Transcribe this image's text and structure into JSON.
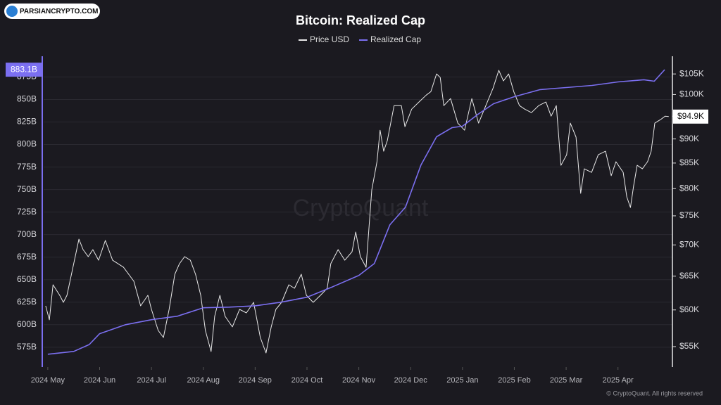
{
  "chart_data": {
    "type": "line",
    "title": "Bitcoin: Realized Cap",
    "brand": "PARSIANCRYPTO.COM",
    "watermark": "CryptoQuant",
    "footer": "© CryptoQuant. All rights reserved",
    "xlim": [
      -0.08,
      12.05
    ],
    "xticks": [
      {
        "value": 0,
        "label": "2024 May"
      },
      {
        "value": 1,
        "label": "2024 Jun"
      },
      {
        "value": 2,
        "label": "2024 Jul"
      },
      {
        "value": 3,
        "label": "2024 Aug"
      },
      {
        "value": 4,
        "label": "2024 Sep"
      },
      {
        "value": 5,
        "label": "2024 Oct"
      },
      {
        "value": 6,
        "label": "2024 Nov"
      },
      {
        "value": 7,
        "label": "2024 Dec"
      },
      {
        "value": 8,
        "label": "2025 Jan"
      },
      {
        "value": 9,
        "label": "2025 Feb"
      },
      {
        "value": 10,
        "label": "2025 Mar"
      },
      {
        "value": 11,
        "label": "2025 Apr"
      }
    ],
    "ylim": [
      553,
      898
    ],
    "yticks": [
      {
        "value": 575,
        "label": "575B"
      },
      {
        "value": 600,
        "label": "600B"
      },
      {
        "value": 625,
        "label": "625B"
      },
      {
        "value": 650,
        "label": "650B"
      },
      {
        "value": 675,
        "label": "675B"
      },
      {
        "value": 700,
        "label": "700B"
      },
      {
        "value": 725,
        "label": "725B"
      },
      {
        "value": 750,
        "label": "750B"
      },
      {
        "value": 775,
        "label": "775B"
      },
      {
        "value": 800,
        "label": "800B"
      },
      {
        "value": 825,
        "label": "825B"
      },
      {
        "value": 850,
        "label": "850B"
      },
      {
        "value": 875,
        "label": "875B"
      }
    ],
    "y2lim": [
      52400,
      109500
    ],
    "y2scale": "log",
    "y2ticks": [
      {
        "value": 55000,
        "label": "$55K"
      },
      {
        "value": 60000,
        "label": "$60K"
      },
      {
        "value": 65000,
        "label": "$65K"
      },
      {
        "value": 70000,
        "label": "$70K"
      },
      {
        "value": 75000,
        "label": "$75K"
      },
      {
        "value": 80000,
        "label": "$80K"
      },
      {
        "value": 85000,
        "label": "$85K"
      },
      {
        "value": 90000,
        "label": "$90K"
      },
      {
        "value": 95000,
        "label": "$95K"
      },
      {
        "value": 100000,
        "label": "$100K"
      },
      {
        "value": 105000,
        "label": "$105K"
      }
    ],
    "grid": true,
    "legend": "top",
    "series": [
      {
        "name": "Price USD",
        "color": "#e8e8e8",
        "axis": "y2",
        "end_label": {
          "value": 94900,
          "label": "$94.9K"
        },
        "x": [
          -0.04,
          0.03,
          0.1,
          0.23,
          0.3,
          0.37,
          0.5,
          0.6,
          0.68,
          0.78,
          0.87,
          0.98,
          1.11,
          1.25,
          1.46,
          1.66,
          1.79,
          1.93,
          2.0,
          2.13,
          2.23,
          2.34,
          2.45,
          2.54,
          2.64,
          2.75,
          2.85,
          2.95,
          3.04,
          3.15,
          3.22,
          3.32,
          3.42,
          3.56,
          3.7,
          3.83,
          3.97,
          4.1,
          4.21,
          4.31,
          4.4,
          4.51,
          4.65,
          4.76,
          4.89,
          4.99,
          5.12,
          5.26,
          5.39,
          5.46,
          5.6,
          5.73,
          5.87,
          5.94,
          6.03,
          6.14,
          6.25,
          6.35,
          6.41,
          6.48,
          6.55,
          6.68,
          6.82,
          6.89,
          7.02,
          7.16,
          7.3,
          7.39,
          7.5,
          7.57,
          7.64,
          7.77,
          7.91,
          8.04,
          8.18,
          8.31,
          8.45,
          8.59,
          8.7,
          8.79,
          8.89,
          8.99,
          9.1,
          9.2,
          9.33,
          9.47,
          9.61,
          9.71,
          9.81,
          9.9,
          10.01,
          10.08,
          10.19,
          10.28,
          10.35,
          10.49,
          10.62,
          10.76,
          10.87,
          10.96,
          11.1,
          11.17,
          11.24,
          11.3,
          11.37,
          11.47,
          11.57,
          11.64,
          11.71,
          11.82,
          11.91,
          11.98
        ],
        "values": [
          60580,
          58600,
          63690,
          62120,
          61090,
          62120,
          66960,
          70970,
          69220,
          68080,
          69220,
          67510,
          70740,
          67510,
          66390,
          64220,
          60580,
          62120,
          60080,
          57150,
          56200,
          60080,
          65300,
          66960,
          68080,
          67510,
          65300,
          62120,
          57150,
          54360,
          59090,
          62120,
          59090,
          57630,
          60080,
          59580,
          61090,
          56200,
          54180,
          57630,
          60080,
          61090,
          63690,
          63160,
          65300,
          62120,
          61090,
          62120,
          63160,
          66960,
          69220,
          67510,
          68880,
          72170,
          68080,
          66390,
          79760,
          85270,
          91880,
          87410,
          89640,
          97410,
          97410,
          92650,
          96600,
          98230,
          99850,
          100680,
          105010,
          104140,
          97410,
          99040,
          93440,
          91880,
          99040,
          93440,
          97410,
          101530,
          105900,
          103270,
          105010,
          100680,
          97410,
          96600,
          95800,
          97410,
          98230,
          95000,
          97410,
          84550,
          86690,
          93440,
          90390,
          79100,
          83850,
          83140,
          86690,
          87410,
          82490,
          85270,
          83140,
          78450,
          76500,
          80430,
          84550,
          83850,
          85270,
          87410,
          93440,
          94230,
          95000,
          94900
        ]
      },
      {
        "name": "Realized Cap",
        "color": "#7b6ff0",
        "end_label": {
          "value": 883.1,
          "label": "883.1B"
        },
        "x": [
          0,
          0.5,
          0.8,
          1.0,
          1.5,
          2.0,
          2.5,
          3.0,
          3.5,
          4.0,
          4.5,
          5.0,
          5.5,
          6.0,
          6.3,
          6.6,
          6.9,
          7.2,
          7.5,
          7.8,
          8.0,
          8.3,
          8.6,
          9.0,
          9.5,
          10.0,
          10.5,
          11.0,
          11.5,
          11.7,
          11.9
        ],
        "values": [
          567.2,
          570.3,
          578,
          590,
          600,
          605.5,
          609.4,
          618.8,
          619.5,
          621,
          625,
          630.5,
          642.2,
          654.7,
          668,
          711,
          730.5,
          777.3,
          808.6,
          818.8,
          820.3,
          833.6,
          845.3,
          853.1,
          861,
          863.3,
          865.6,
          869.5,
          871.9,
          870.3,
          883.1
        ]
      }
    ]
  }
}
